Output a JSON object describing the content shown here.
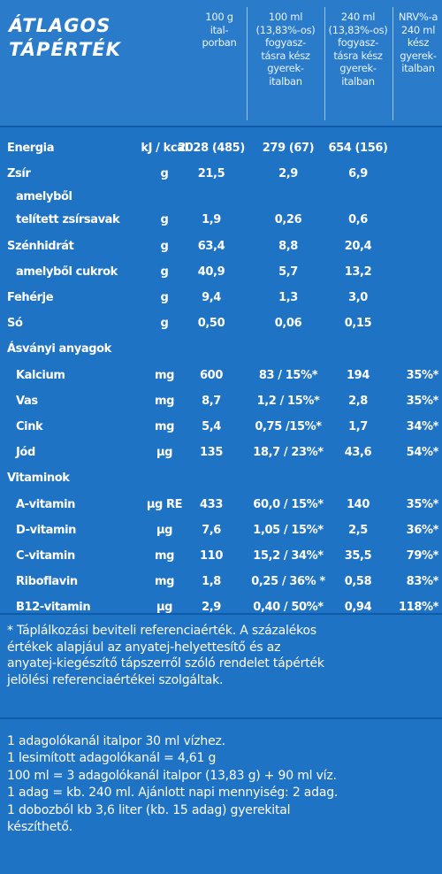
{
  "header": {
    "title_line1": "ÁTLAGOS",
    "title_line2": "TÁPÉRTÉK",
    "columns": [
      "100 g\nital-\nporban",
      "100 ml\n(13,83%-os)\nfogyasz-\ntásra kész\ngyerek-\nitalban",
      "240 ml\n(13,83%-os)\nfogyasz-\ntásra kész\ngyerek-\nitalban",
      "NRV%-a\n240 ml\nkész\ngyerek-\nitalban"
    ]
  },
  "rows": [
    {
      "label": "Energia",
      "unit": "kJ / kcal",
      "v1": "2028 (485)",
      "v2": "279 (67)",
      "v3": "654 (156)",
      "v4": ""
    },
    {
      "label": "Zsír",
      "unit": "g",
      "v1": "21,5",
      "v2": "2,9",
      "v3": "6,9",
      "v4": ""
    },
    {
      "label": "amelyből",
      "unit": "",
      "v1": "",
      "v2": "",
      "v3": "",
      "v4": ""
    },
    {
      "label": "telített zsírsavak",
      "unit": "g",
      "v1": "1,9",
      "v2": "0,26",
      "v3": "0,6",
      "v4": ""
    },
    {
      "label": "Szénhidrát",
      "unit": "g",
      "v1": "63,4",
      "v2": "8,8",
      "v3": "20,4",
      "v4": ""
    },
    {
      "label": "amelyből cukrok",
      "unit": "g",
      "v1": "40,9",
      "v2": "5,7",
      "v3": "13,2",
      "v4": ""
    },
    {
      "label": "Fehérje",
      "unit": "g",
      "v1": "9,4",
      "v2": "1,3",
      "v3": "3,0",
      "v4": ""
    },
    {
      "label": "Só",
      "unit": "g",
      "v1": "0,50",
      "v2": "0,06",
      "v3": "0,15",
      "v4": ""
    },
    {
      "label": "Ásványi anyagok",
      "unit": "",
      "v1": "",
      "v2": "",
      "v3": "",
      "v4": ""
    },
    {
      "label": "Kalcium",
      "unit": "mg",
      "v1": "600",
      "v2": "83 / 15%*",
      "v3": "194",
      "v4": "35%*"
    },
    {
      "label": "Vas",
      "unit": "mg",
      "v1": "8,7",
      "v2": "1,2 / 15%*",
      "v3": "2,8",
      "v4": "35%*"
    },
    {
      "label": "Cink",
      "unit": "mg",
      "v1": "5,4",
      "v2": "0,75 /15%*",
      "v3": "1,7",
      "v4": "34%*"
    },
    {
      "label": "Jód",
      "unit": "μg",
      "v1": "135",
      "v2": "18,7 / 23%*",
      "v3": "43,6",
      "v4": "54%*"
    },
    {
      "label": "Vitaminok",
      "unit": "",
      "v1": "",
      "v2": "",
      "v3": "",
      "v4": ""
    },
    {
      "label": "A-vitamin",
      "unit": "μg RE",
      "v1": "433",
      "v2": "60,0 / 15%*",
      "v3": "140",
      "v4": "35%*"
    },
    {
      "label": "D-vitamin",
      "unit": "μg",
      "v1": "7,6",
      "v2": "1,05 / 15%*",
      "v3": "2,5",
      "v4": "36%*"
    },
    {
      "label": "C-vitamin",
      "unit": "mg",
      "v1": "110",
      "v2": "15,2 / 34%*",
      "v3": "35,5",
      "v4": "79%*"
    },
    {
      "label": "Riboflavin",
      "unit": "mg",
      "v1": "1,8",
      "v2": "0,25 / 36% *",
      "v3": "0,58",
      "v4": "83%*"
    },
    {
      "label": "B12-vitamin",
      "unit": "μg",
      "v1": "2,9",
      "v2": "0,40 / 50%*",
      "v3": "0,94",
      "v4": "118%*"
    }
  ],
  "footnote": [
    "* Táplálkozási beviteli referenciaérték. A százalékos",
    "értékek alapjául az anyatej-helyettesítő és az",
    "anyatej-kiegészítő tápszerről szóló rendelet tápérték",
    "jelölési referenciaértékei szolgáltak."
  ],
  "info": [
    "1 adagolókanál italpor 30 ml vízhez.",
    "1 lesimított adagolókanál = 4,61 g",
    "100 ml = 3 adagolókanál italpor (13,83 g) + 90 ml víz.",
    "1 adag = kb. 240 ml. Ajánlott napi mennyiség: 2 adag.",
    "1 dobozból kb 3,6 liter (kb. 15 adag) gyerekital",
    "készíthető."
  ]
}
